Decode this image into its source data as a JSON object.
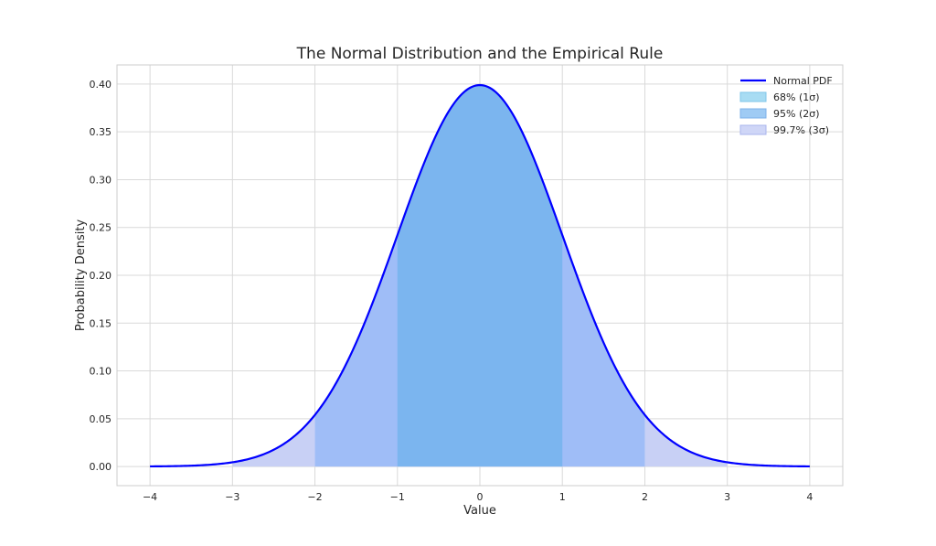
{
  "chart_data": {
    "type": "area",
    "title": "The Normal Distribution and the Empirical Rule",
    "xlabel": "Value",
    "ylabel": "Probability Density",
    "xlim": [
      -4.4,
      4.4
    ],
    "ylim": [
      -0.02,
      0.42
    ],
    "xticks": [
      -4,
      -3,
      -2,
      -1,
      0,
      1,
      2,
      3,
      4
    ],
    "xtick_labels": [
      "−4",
      "−3",
      "−2",
      "−1",
      "0",
      "1",
      "2",
      "3",
      "4"
    ],
    "yticks": [
      0.0,
      0.05,
      0.1,
      0.15,
      0.2,
      0.25,
      0.3,
      0.35,
      0.4
    ],
    "ytick_labels": [
      "0.00",
      "0.05",
      "0.10",
      "0.15",
      "0.20",
      "0.25",
      "0.30",
      "0.35",
      "0.40"
    ],
    "grid": true,
    "legend_position": "top-right",
    "series": [
      {
        "name": "Normal PDF",
        "kind": "line",
        "mean": 0,
        "sd": 1,
        "x_range": [
          -4,
          4
        ],
        "color": "#0000ff"
      }
    ],
    "shaded_regions": [
      {
        "name": "99.7% (3σ)",
        "range": [
          -3,
          3
        ],
        "color": "#c8d0f5"
      },
      {
        "name": "95% (2σ)",
        "range": [
          -2,
          2
        ],
        "color": "#9fbdf7"
      },
      {
        "name": "68% (1σ)",
        "range": [
          -1,
          1
        ],
        "color": "#7bb5ef"
      }
    ],
    "legend": [
      {
        "name": "Normal PDF",
        "kind": "line",
        "color": "#0000ff"
      },
      {
        "name": "68% (1σ)",
        "kind": "patch",
        "color": "#a8dcf3",
        "edge": "#7fc6ea"
      },
      {
        "name": "95% (2σ)",
        "kind": "patch",
        "color": "#9fcbf4",
        "edge": "#7cb0ea"
      },
      {
        "name": "99.7% (3σ)",
        "kind": "patch",
        "color": "#cfd6f7",
        "edge": "#aab5ee"
      }
    ]
  }
}
